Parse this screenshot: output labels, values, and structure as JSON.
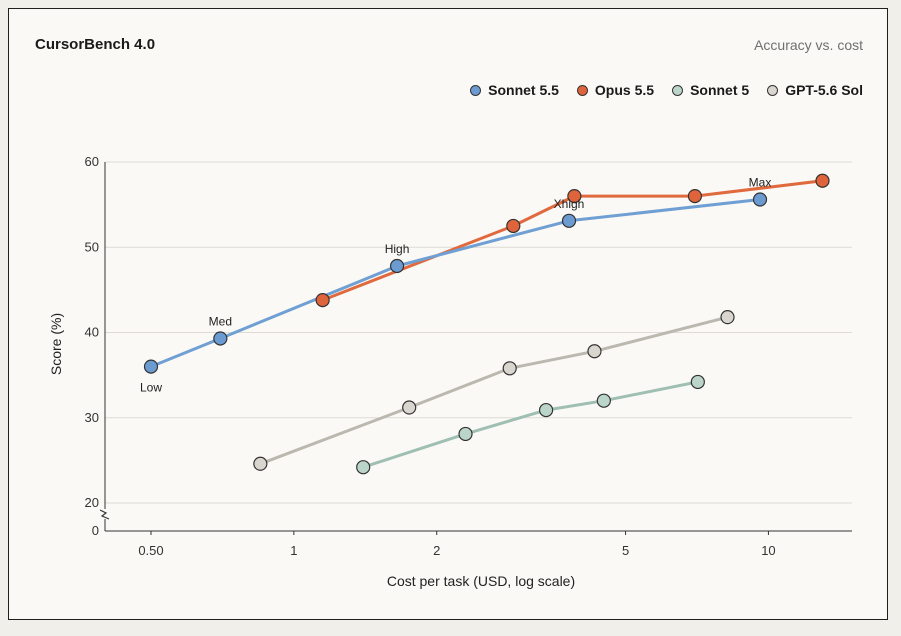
{
  "header": {
    "title": "CursorBench 4.0",
    "subtitle": "Accuracy vs. cost"
  },
  "colors": {
    "sonnet55": "#6b9bd1",
    "opus55": "#e0643b",
    "sonnet5": "#bcd5c9",
    "gpt56": "#d8d6cf",
    "sonnet55_line": "#6f9fd3",
    "opus55_line": "#e0693e",
    "sonnet5_line": "#9ebfb1",
    "gpt56_line": "#bbb8b0"
  },
  "chart_data": {
    "type": "scatter",
    "title": "CursorBench 4.0",
    "subtitle": "Accuracy vs. cost",
    "xlabel": "Cost per task (USD, log scale)",
    "ylabel": "Score (%)",
    "x_scale": "log",
    "xlim": [
      0.4,
      15
    ],
    "ylim": [
      20,
      60
    ],
    "y_axis_break": true,
    "y_ticks": [
      0,
      20,
      30,
      40,
      50,
      60
    ],
    "x_ticks": [
      0.5,
      1,
      2,
      5,
      10
    ],
    "x_tick_labels": [
      "0.50",
      "1",
      "2",
      "5",
      "10"
    ],
    "grid": true,
    "legend_position": "top-right",
    "series": [
      {
        "name": "Sonnet 5.5",
        "color_key": "sonnet55",
        "points": [
          {
            "x": 0.5,
            "y": 36,
            "label": "Low"
          },
          {
            "x": 0.7,
            "y": 39.3,
            "label": "Med"
          },
          {
            "x": 1.65,
            "y": 47.8,
            "label": "High"
          },
          {
            "x": 3.8,
            "y": 53.1,
            "label": "Xhigh"
          },
          {
            "x": 9.6,
            "y": 55.6,
            "label": "Max"
          }
        ]
      },
      {
        "name": "Opus 5.5",
        "color_key": "opus55",
        "points": [
          {
            "x": 1.15,
            "y": 43.8
          },
          {
            "x": 2.9,
            "y": 52.5
          },
          {
            "x": 3.9,
            "y": 56
          },
          {
            "x": 7,
            "y": 56
          },
          {
            "x": 13,
            "y": 57.8
          }
        ]
      },
      {
        "name": "Sonnet 5",
        "color_key": "sonnet5",
        "points": [
          {
            "x": 1.4,
            "y": 24.2
          },
          {
            "x": 2.3,
            "y": 28.1
          },
          {
            "x": 3.4,
            "y": 30.9
          },
          {
            "x": 4.5,
            "y": 32
          },
          {
            "x": 7.1,
            "y": 34.2
          }
        ]
      },
      {
        "name": "GPT-5.6 Sol",
        "color_key": "gpt56",
        "points": [
          {
            "x": 0.85,
            "y": 24.6
          },
          {
            "x": 1.75,
            "y": 31.2
          },
          {
            "x": 2.85,
            "y": 35.8
          },
          {
            "x": 4.3,
            "y": 37.8
          },
          {
            "x": 8.2,
            "y": 41.8
          }
        ]
      }
    ]
  }
}
